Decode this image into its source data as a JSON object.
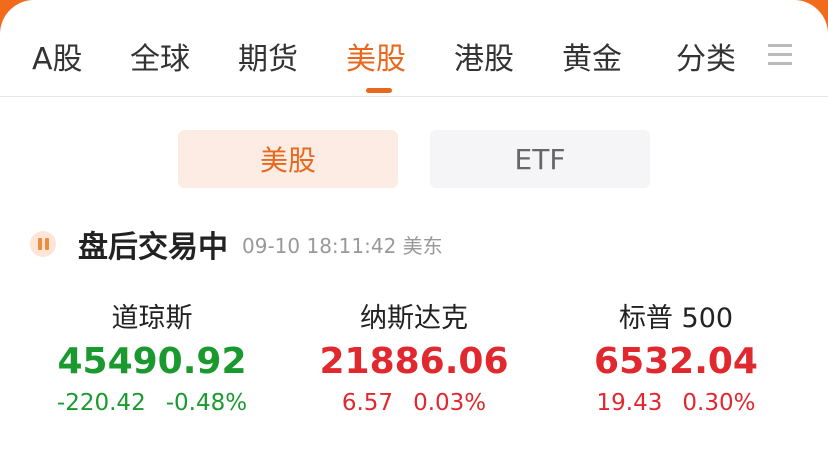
{
  "tabs": [
    {
      "label": "A股"
    },
    {
      "label": "全球"
    },
    {
      "label": "期货"
    },
    {
      "label": "美股",
      "active": true
    },
    {
      "label": "港股"
    },
    {
      "label": "黄金"
    },
    {
      "label": "分类"
    }
  ],
  "menu_icon": "hamburger-icon",
  "segments": [
    {
      "label": "美股",
      "active": true
    },
    {
      "label": "ETF"
    }
  ],
  "status": {
    "text": "盘后交易中",
    "time": "09-10 18:11:42 美东",
    "icon": "candlestick-icon"
  },
  "indices": [
    {
      "name": "道琼斯",
      "value": "45490.92",
      "change": "-220.42",
      "percent": "-0.48%",
      "color": "#1a9a2e"
    },
    {
      "name": "纳斯达克",
      "value": "21886.06",
      "change": "6.57",
      "percent": "0.03%",
      "color": "#e0282e"
    },
    {
      "name": "标普 500",
      "value": "6532.04",
      "change": "19.43",
      "percent": "0.30%",
      "color": "#e0282e"
    }
  ],
  "colors": {
    "accent": "#e8681e",
    "up": "#e0282e",
    "down": "#1a9a2e"
  }
}
